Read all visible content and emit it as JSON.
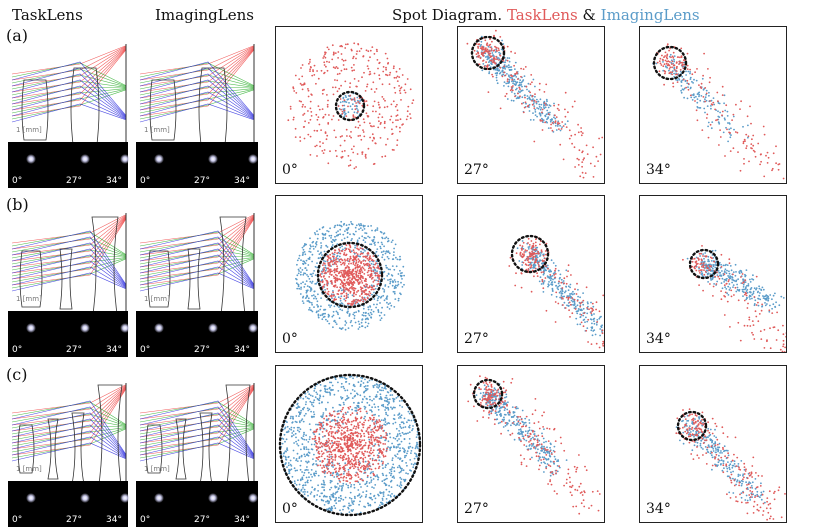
{
  "headers": {
    "tasklens": "TaskLens",
    "imaginglens": "ImagingLens",
    "spot_title": "Spot Diagram.",
    "spot_tasklens": "TaskLens",
    "spot_amp": "&",
    "spot_imaginglens": "ImagingLens"
  },
  "colors": {
    "task": "#e05a5a",
    "imaging": "#5b9cc9",
    "ray_red": "#e33",
    "ray_green": "#2a2",
    "ray_blue": "#22d"
  },
  "scale_label": "1 [mm]",
  "rows": [
    {
      "label": "(a)",
      "angles": [
        "0°",
        "27°",
        "34°"
      ],
      "spots": [
        {
          "task": 420,
          "img": 60
        },
        {
          "task": 260,
          "img": 340
        },
        {
          "task": 200,
          "img": 160
        }
      ]
    },
    {
      "label": "(b)",
      "angles": [
        "0°",
        "27°",
        "34°"
      ],
      "spots": [
        {
          "task": 600,
          "img": 700
        },
        {
          "task": 260,
          "img": 340
        },
        {
          "task": 200,
          "img": 320
        }
      ]
    },
    {
      "label": "(c)",
      "angles": [
        "0°",
        "27°",
        "34°"
      ],
      "spots": [
        {
          "task": 700,
          "img": 1100
        },
        {
          "task": 260,
          "img": 340
        },
        {
          "task": 240,
          "img": 240
        }
      ]
    }
  ]
}
